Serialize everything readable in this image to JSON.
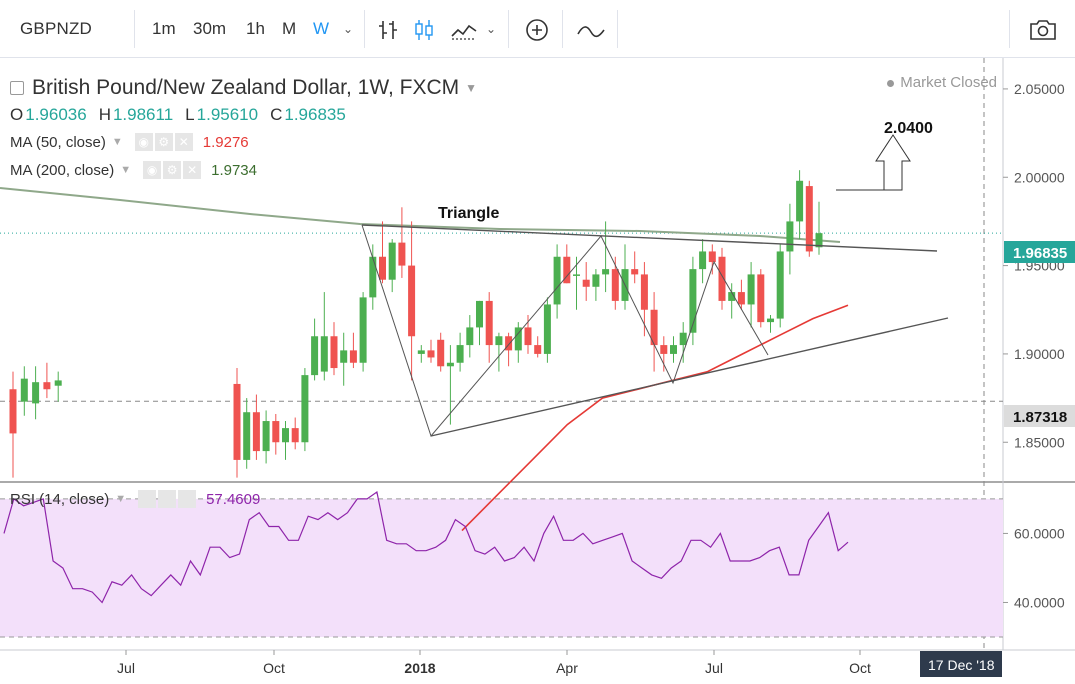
{
  "toolbar": {
    "symbol": "GBPNZD",
    "intervals": [
      "1m",
      "30m",
      "1h",
      "M",
      "W"
    ],
    "active_interval": "W",
    "icons": [
      "bar-chart-icon",
      "candle-chart-icon",
      "area-chart-icon",
      "add-indicator-icon",
      "draw-icon",
      "camera-icon"
    ]
  },
  "legend": {
    "title": "British Pound/New Zealand Dollar, 1W, FXCM",
    "ohlc": [
      {
        "k": "O",
        "v": "1.96036"
      },
      {
        "k": "H",
        "v": "1.98611"
      },
      {
        "k": "L",
        "v": "1.95610"
      },
      {
        "k": "C",
        "v": "1.96835"
      }
    ],
    "ma50": {
      "label": "MA (50, close)",
      "value": "1.9276",
      "color": "#e53935"
    },
    "ma200": {
      "label": "MA (200, close)",
      "value": "1.9734",
      "color": "#3c6e2f"
    },
    "market_status": "Market Closed"
  },
  "rsi_legend": {
    "label": "RSI (14, close)",
    "value": "57.4609",
    "color": "#8e24aa"
  },
  "annotations": {
    "triangle": "Triangle",
    "target": "2.0400"
  },
  "price_labels": {
    "current": "1.96835",
    "crosshair": "1.87318"
  },
  "time_label": "17 Dec '18",
  "colors": {
    "up": "#26a69a",
    "up_light": "#4caf50",
    "down": "#ef5350",
    "ma50": "#e53935",
    "ma200": "#8fa88a",
    "rsi": "#8e24aa",
    "rsi_bg": "#f3e0fa"
  },
  "chart_data": {
    "type": "candlestick",
    "title": "British Pound/New Zealand Dollar, 1W, FXCM",
    "y_axis": {
      "ticks": [
        1.85,
        1.9,
        1.95,
        2.0,
        2.05
      ],
      "tick_labels": [
        "1.85000",
        "1.90000",
        "1.95000",
        "2.00000",
        "2.05000"
      ],
      "range": [
        1.8275,
        2.0675
      ]
    },
    "x_axis": {
      "tick_labels": [
        "Jul",
        "Oct",
        "2018",
        "Apr",
        "Jul",
        "Oct"
      ]
    },
    "candles": [
      {
        "o": 1.88,
        "h": 1.89,
        "l": 1.83,
        "c": 1.855
      },
      {
        "o": 1.873,
        "h": 1.893,
        "l": 1.865,
        "c": 1.886
      },
      {
        "o": 1.872,
        "h": 1.893,
        "l": 1.863,
        "c": 1.884
      },
      {
        "o": 1.884,
        "h": 1.895,
        "l": 1.875,
        "c": 1.88
      },
      {
        "o": 1.882,
        "h": 1.89,
        "l": 1.873,
        "c": 1.885
      },
      {
        "o": 1.883,
        "h": 1.892,
        "l": 1.83,
        "c": 1.84
      },
      {
        "o": 1.84,
        "h": 1.875,
        "l": 1.835,
        "c": 1.867
      },
      {
        "o": 1.867,
        "h": 1.877,
        "l": 1.84,
        "c": 1.845
      },
      {
        "o": 1.845,
        "h": 1.868,
        "l": 1.838,
        "c": 1.862
      },
      {
        "o": 1.862,
        "h": 1.866,
        "l": 1.843,
        "c": 1.85
      },
      {
        "o": 1.85,
        "h": 1.862,
        "l": 1.84,
        "c": 1.858
      },
      {
        "o": 1.858,
        "h": 1.864,
        "l": 1.846,
        "c": 1.85
      },
      {
        "o": 1.85,
        "h": 1.892,
        "l": 1.845,
        "c": 1.888
      },
      {
        "o": 1.888,
        "h": 1.92,
        "l": 1.885,
        "c": 1.91
      },
      {
        "o": 1.89,
        "h": 1.935,
        "l": 1.885,
        "c": 1.91
      },
      {
        "o": 1.91,
        "h": 1.918,
        "l": 1.888,
        "c": 1.892
      },
      {
        "o": 1.895,
        "h": 1.912,
        "l": 1.882,
        "c": 1.902
      },
      {
        "o": 1.902,
        "h": 1.912,
        "l": 1.892,
        "c": 1.895
      },
      {
        "o": 1.895,
        "h": 1.935,
        "l": 1.89,
        "c": 1.932
      },
      {
        "o": 1.932,
        "h": 1.962,
        "l": 1.925,
        "c": 1.955
      },
      {
        "o": 1.955,
        "h": 1.975,
        "l": 1.94,
        "c": 1.942
      },
      {
        "o": 1.942,
        "h": 1.965,
        "l": 1.935,
        "c": 1.963
      },
      {
        "o": 1.963,
        "h": 1.983,
        "l": 1.943,
        "c": 1.95
      },
      {
        "o": 1.95,
        "h": 1.975,
        "l": 1.885,
        "c": 1.91
      },
      {
        "o": 1.9,
        "h": 1.905,
        "l": 1.895,
        "c": 1.902
      },
      {
        "o": 1.902,
        "h": 1.908,
        "l": 1.895,
        "c": 1.898
      },
      {
        "o": 1.908,
        "h": 1.912,
        "l": 1.89,
        "c": 1.893
      },
      {
        "o": 1.893,
        "h": 1.905,
        "l": 1.86,
        "c": 1.895
      },
      {
        "o": 1.895,
        "h": 1.912,
        "l": 1.89,
        "c": 1.905
      },
      {
        "o": 1.905,
        "h": 1.922,
        "l": 1.898,
        "c": 1.915
      },
      {
        "o": 1.915,
        "h": 1.93,
        "l": 1.905,
        "c": 1.93
      },
      {
        "o": 1.93,
        "h": 1.935,
        "l": 1.895,
        "c": 1.905
      },
      {
        "o": 1.905,
        "h": 1.912,
        "l": 1.89,
        "c": 1.91
      },
      {
        "o": 1.91,
        "h": 1.912,
        "l": 1.893,
        "c": 1.902
      },
      {
        "o": 1.902,
        "h": 1.918,
        "l": 1.895,
        "c": 1.915
      },
      {
        "o": 1.915,
        "h": 1.922,
        "l": 1.9,
        "c": 1.905
      },
      {
        "o": 1.905,
        "h": 1.91,
        "l": 1.898,
        "c": 1.9
      },
      {
        "o": 1.9,
        "h": 1.932,
        "l": 1.895,
        "c": 1.928
      },
      {
        "o": 1.928,
        "h": 1.962,
        "l": 1.92,
        "c": 1.955
      },
      {
        "o": 1.955,
        "h": 1.962,
        "l": 1.94,
        "c": 1.94
      },
      {
        "o": 1.945,
        "h": 1.955,
        "l": 1.925,
        "c": 1.945
      },
      {
        "o": 1.942,
        "h": 1.952,
        "l": 1.93,
        "c": 1.938
      },
      {
        "o": 1.938,
        "h": 1.948,
        "l": 1.93,
        "c": 1.945
      },
      {
        "o": 1.945,
        "h": 1.975,
        "l": 1.935,
        "c": 1.948
      },
      {
        "o": 1.948,
        "h": 1.955,
        "l": 1.925,
        "c": 1.93
      },
      {
        "o": 1.93,
        "h": 1.962,
        "l": 1.925,
        "c": 1.948
      },
      {
        "o": 1.948,
        "h": 1.958,
        "l": 1.94,
        "c": 1.945
      },
      {
        "o": 1.945,
        "h": 1.952,
        "l": 1.91,
        "c": 1.925
      },
      {
        "o": 1.925,
        "h": 1.935,
        "l": 1.89,
        "c": 1.905
      },
      {
        "o": 1.905,
        "h": 1.91,
        "l": 1.89,
        "c": 1.9
      },
      {
        "o": 1.9,
        "h": 1.91,
        "l": 1.895,
        "c": 1.905
      },
      {
        "o": 1.905,
        "h": 1.918,
        "l": 1.895,
        "c": 1.912
      },
      {
        "o": 1.912,
        "h": 1.955,
        "l": 1.905,
        "c": 1.948
      },
      {
        "o": 1.948,
        "h": 1.965,
        "l": 1.94,
        "c": 1.958
      },
      {
        "o": 1.958,
        "h": 1.962,
        "l": 1.945,
        "c": 1.952
      },
      {
        "o": 1.955,
        "h": 1.96,
        "l": 1.925,
        "c": 1.93
      },
      {
        "o": 1.93,
        "h": 1.94,
        "l": 1.92,
        "c": 1.935
      },
      {
        "o": 1.935,
        "h": 1.942,
        "l": 1.925,
        "c": 1.928
      },
      {
        "o": 1.928,
        "h": 1.952,
        "l": 1.915,
        "c": 1.945
      },
      {
        "o": 1.945,
        "h": 1.948,
        "l": 1.915,
        "c": 1.918
      },
      {
        "o": 1.918,
        "h": 1.922,
        "l": 1.912,
        "c": 1.92
      },
      {
        "o": 1.92,
        "h": 1.962,
        "l": 1.915,
        "c": 1.958
      },
      {
        "o": 1.958,
        "h": 1.985,
        "l": 1.945,
        "c": 1.975
      },
      {
        "o": 1.975,
        "h": 2.004,
        "l": 1.965,
        "c": 1.998
      },
      {
        "o": 1.995,
        "h": 1.998,
        "l": 1.955,
        "c": 1.958
      },
      {
        "o": 1.96036,
        "h": 1.98611,
        "l": 1.9561,
        "c": 1.96835
      }
    ],
    "ma50": [
      1.8,
      1.82,
      1.84,
      1.86,
      1.875,
      1.88,
      1.885,
      1.89,
      1.9,
      1.91,
      1.92,
      1.9276
    ],
    "ma200_value": 1.9734,
    "rsi": {
      "range": [
        30,
        72
      ],
      "ticks": [
        40,
        60
      ],
      "tick_labels": [
        "40.0000",
        "60.0000"
      ],
      "upper": 70,
      "lower": 30,
      "values": [
        60,
        70,
        68,
        69,
        70,
        52,
        50,
        44,
        44,
        43,
        40,
        46,
        45,
        48,
        44,
        42,
        45,
        48,
        45,
        52,
        48,
        56,
        56,
        53,
        54,
        64,
        66,
        62,
        62,
        58,
        58,
        65,
        64,
        66,
        64,
        66,
        70,
        70,
        72,
        58,
        57,
        57,
        55,
        55,
        56,
        58,
        64,
        62,
        55,
        54,
        56,
        52,
        53,
        56,
        52,
        60,
        65,
        58,
        58,
        60,
        57,
        58,
        59,
        60,
        52,
        50,
        48,
        47,
        50,
        52,
        58,
        58,
        56,
        60,
        52,
        52,
        52,
        53,
        55,
        56,
        48,
        48,
        58,
        62,
        66,
        55,
        57.4609
      ]
    },
    "drawings": {
      "triangle_top": [
        [
          1.983,
          0
        ],
        [
          1.968,
          1
        ]
      ],
      "triangle_bottom": [
        [
          1.86,
          0
        ],
        [
          1.93,
          1
        ]
      ]
    }
  }
}
